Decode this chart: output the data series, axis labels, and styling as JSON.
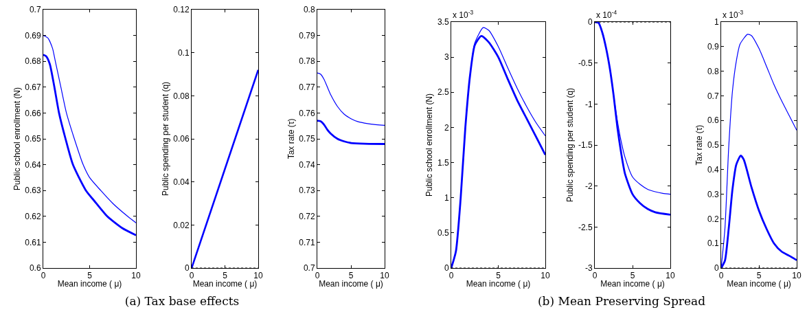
{
  "chart_data": [
    {
      "type": "line",
      "xlabel": "Mean income ( μ)",
      "ylabel": "Public school enrollment (N)",
      "xlim": [
        0,
        10
      ],
      "xticks": [
        0,
        5,
        10
      ],
      "ylim": [
        0.6,
        0.7
      ],
      "yticks": [
        0.6,
        0.61,
        0.62,
        0.63,
        0.64,
        0.65,
        0.66,
        0.67,
        0.68,
        0.69,
        0.7
      ],
      "grid": false,
      "marker": "none",
      "line_style": "solid",
      "series": [
        {
          "color": "#0000ff",
          "x": [
            0,
            0.5,
            1,
            1.3,
            1.9,
            2.5,
            3.35,
            4.3,
            5,
            6.2,
            7.5,
            9.1,
            10
          ],
          "values": [
            0.69,
            0.689,
            0.685,
            0.68,
            0.67,
            0.66,
            0.65,
            0.64,
            0.635,
            0.63,
            0.625,
            0.62,
            0.6175
          ]
        },
        {
          "color": "#0000ff",
          "x": [
            0,
            0.3,
            0.7,
            1.2,
            1.7,
            2.4,
            3.2,
            4.6,
            5.5,
            6.9,
            8.5,
            10
          ],
          "values": [
            0.6825,
            0.682,
            0.679,
            0.67,
            0.66,
            0.65,
            0.64,
            0.63,
            0.626,
            0.62,
            0.6155,
            0.6127
          ]
        }
      ]
    },
    {
      "type": "line",
      "title": "(a)  Tax base effects",
      "xlabel": "Mean income ( μ)",
      "ylabel": "Public spending per student (q)",
      "xlim": [
        0,
        10
      ],
      "xticks": [
        0,
        5,
        10
      ],
      "ylim": [
        0,
        0.12
      ],
      "yticks": [
        0,
        0.02,
        0.04,
        0.06,
        0.08,
        0.1,
        0.12
      ],
      "grid": false,
      "marker": "none",
      "line_style": "solid",
      "ref_lines": [
        {
          "axis": "y",
          "value": 0,
          "color": "#000000",
          "line_style": "dotted"
        }
      ],
      "series": [
        {
          "color": "#0000ff",
          "x": [
            0,
            10
          ],
          "values": [
            0,
            0.092
          ]
        }
      ]
    },
    {
      "type": "line",
      "xlabel": "Mean income ( μ)",
      "ylabel": "Tax rate (τ)",
      "xlim": [
        0,
        10
      ],
      "xticks": [
        0,
        5,
        10
      ],
      "ylim": [
        0.7,
        0.8
      ],
      "yticks": [
        0.7,
        0.71,
        0.72,
        0.73,
        0.74,
        0.75,
        0.76,
        0.77,
        0.78,
        0.79,
        0.8
      ],
      "grid": false,
      "marker": "none",
      "line_style": "solid",
      "series": [
        {
          "color": "#0000ff",
          "x": [
            0,
            0.5,
            1,
            1.5,
            2,
            3,
            4,
            5,
            6,
            7,
            8,
            10
          ],
          "values": [
            0.7755,
            0.775,
            0.773,
            0.77,
            0.767,
            0.7625,
            0.7595,
            0.7578,
            0.7567,
            0.7561,
            0.7557,
            0.7552
          ]
        },
        {
          "color": "#0000ff",
          "x": [
            0,
            0.5,
            1,
            1.5,
            2,
            3,
            4,
            5,
            7,
            10
          ],
          "values": [
            0.757,
            0.7568,
            0.7555,
            0.7535,
            0.752,
            0.75,
            0.749,
            0.7484,
            0.7481,
            0.748
          ]
        }
      ]
    },
    {
      "type": "line",
      "xlabel": "Mean income ( μ)",
      "ylabel": "Public school enrollment (N)",
      "annotations": [
        "x 10$^{-3}$"
      ],
      "xlim": [
        0,
        10
      ],
      "xticks": [
        0,
        5,
        10
      ],
      "ylim": [
        0,
        3.5
      ],
      "yticks": [
        0,
        0.5,
        1,
        1.5,
        2,
        2.5,
        3,
        3.5
      ],
      "grid": false,
      "marker": "none",
      "line_style": "solid",
      "ref_lines": [
        {
          "axis": "y",
          "value": 0,
          "color": "#000000",
          "line_style": "dotted"
        }
      ],
      "series": [
        {
          "color": "#0000ff",
          "x": [
            0,
            0.5,
            1,
            1.5,
            2,
            2.5,
            3.4,
            4,
            5,
            6,
            7,
            8,
            9,
            10
          ],
          "values": [
            0,
            0.24,
            0.99,
            2.0,
            2.74,
            3.2,
            3.42,
            3.38,
            3.15,
            2.85,
            2.56,
            2.3,
            2.07,
            1.88
          ]
        },
        {
          "color": "#0000ff",
          "x": [
            0,
            0.5,
            1,
            1.5,
            2,
            2.5,
            3.2,
            4,
            5,
            6,
            7,
            8,
            9,
            10
          ],
          "values": [
            0,
            0.24,
            0.99,
            2.0,
            2.74,
            3.17,
            3.3,
            3.21,
            3.0,
            2.69,
            2.39,
            2.13,
            1.87,
            1.61
          ]
        }
      ]
    },
    {
      "type": "line",
      "title": "(b)  Mean Preserving Spread",
      "xlabel": "Mean income ( μ)",
      "ylabel": "Public spending per student (q)",
      "annotations": [
        "x 10$^{-4}$"
      ],
      "xlim": [
        0,
        10
      ],
      "xticks": [
        0,
        5,
        10
      ],
      "ylim": [
        -3,
        0
      ],
      "yticks": [
        -3,
        -2.5,
        -2,
        -1.5,
        -1,
        -0.5,
        0
      ],
      "grid": false,
      "marker": "none",
      "line_style": "solid",
      "ref_lines": [
        {
          "axis": "y",
          "value": 0,
          "color": "#000000",
          "line_style": "dotted"
        }
      ],
      "series": [
        {
          "color": "#0000ff",
          "x": [
            0,
            0.5,
            1,
            1.5,
            2,
            2.5,
            3,
            3.5,
            4,
            5,
            6,
            7,
            8,
            9,
            10
          ],
          "values": [
            0,
            -0.01,
            -0.13,
            -0.32,
            -0.57,
            -0.9,
            -1.21,
            -1.46,
            -1.65,
            -1.89,
            -1.98,
            -2.04,
            -2.07,
            -2.09,
            -2.1
          ]
        },
        {
          "color": "#0000ff",
          "x": [
            0,
            0.5,
            1,
            1.5,
            2,
            2.5,
            3,
            3.5,
            4,
            5,
            6,
            7,
            8,
            10
          ],
          "values": [
            0,
            -0.01,
            -0.13,
            -0.32,
            -0.57,
            -0.9,
            -1.29,
            -1.6,
            -1.85,
            -2.1,
            -2.21,
            -2.28,
            -2.32,
            -2.35
          ]
        }
      ]
    },
    {
      "type": "line",
      "xlabel": "Mean income ( μ)",
      "ylabel": "Tax rate (τ)",
      "annotations": [
        "x 10$^{-3}$"
      ],
      "xlim": [
        0,
        10
      ],
      "xticks": [
        0,
        5,
        10
      ],
      "ylim": [
        0,
        1
      ],
      "yticks": [
        0,
        0.1,
        0.2,
        0.3,
        0.4,
        0.5,
        0.6,
        0.7,
        0.8,
        0.9,
        1
      ],
      "grid": false,
      "marker": "none",
      "line_style": "solid",
      "ref_lines": [
        {
          "axis": "y",
          "value": 0,
          "color": "#000000",
          "line_style": "dotted"
        }
      ],
      "series": [
        {
          "color": "#0000ff",
          "x": [
            0,
            0.5,
            1,
            1.5,
            2,
            2.5,
            3.5,
            4,
            5,
            6,
            7,
            8,
            9,
            10
          ],
          "values": [
            0,
            0.16,
            0.49,
            0.72,
            0.84,
            0.91,
            0.95,
            0.945,
            0.893,
            0.82,
            0.745,
            0.68,
            0.62,
            0.56
          ]
        },
        {
          "color": "#0000ff",
          "x": [
            0,
            0.5,
            1,
            1.5,
            2,
            2.6,
            3,
            4,
            5,
            6,
            7,
            8,
            9,
            10
          ],
          "values": [
            0,
            0.03,
            0.16,
            0.32,
            0.42,
            0.457,
            0.44,
            0.33,
            0.234,
            0.16,
            0.1,
            0.067,
            0.05,
            0.032
          ]
        }
      ]
    }
  ]
}
